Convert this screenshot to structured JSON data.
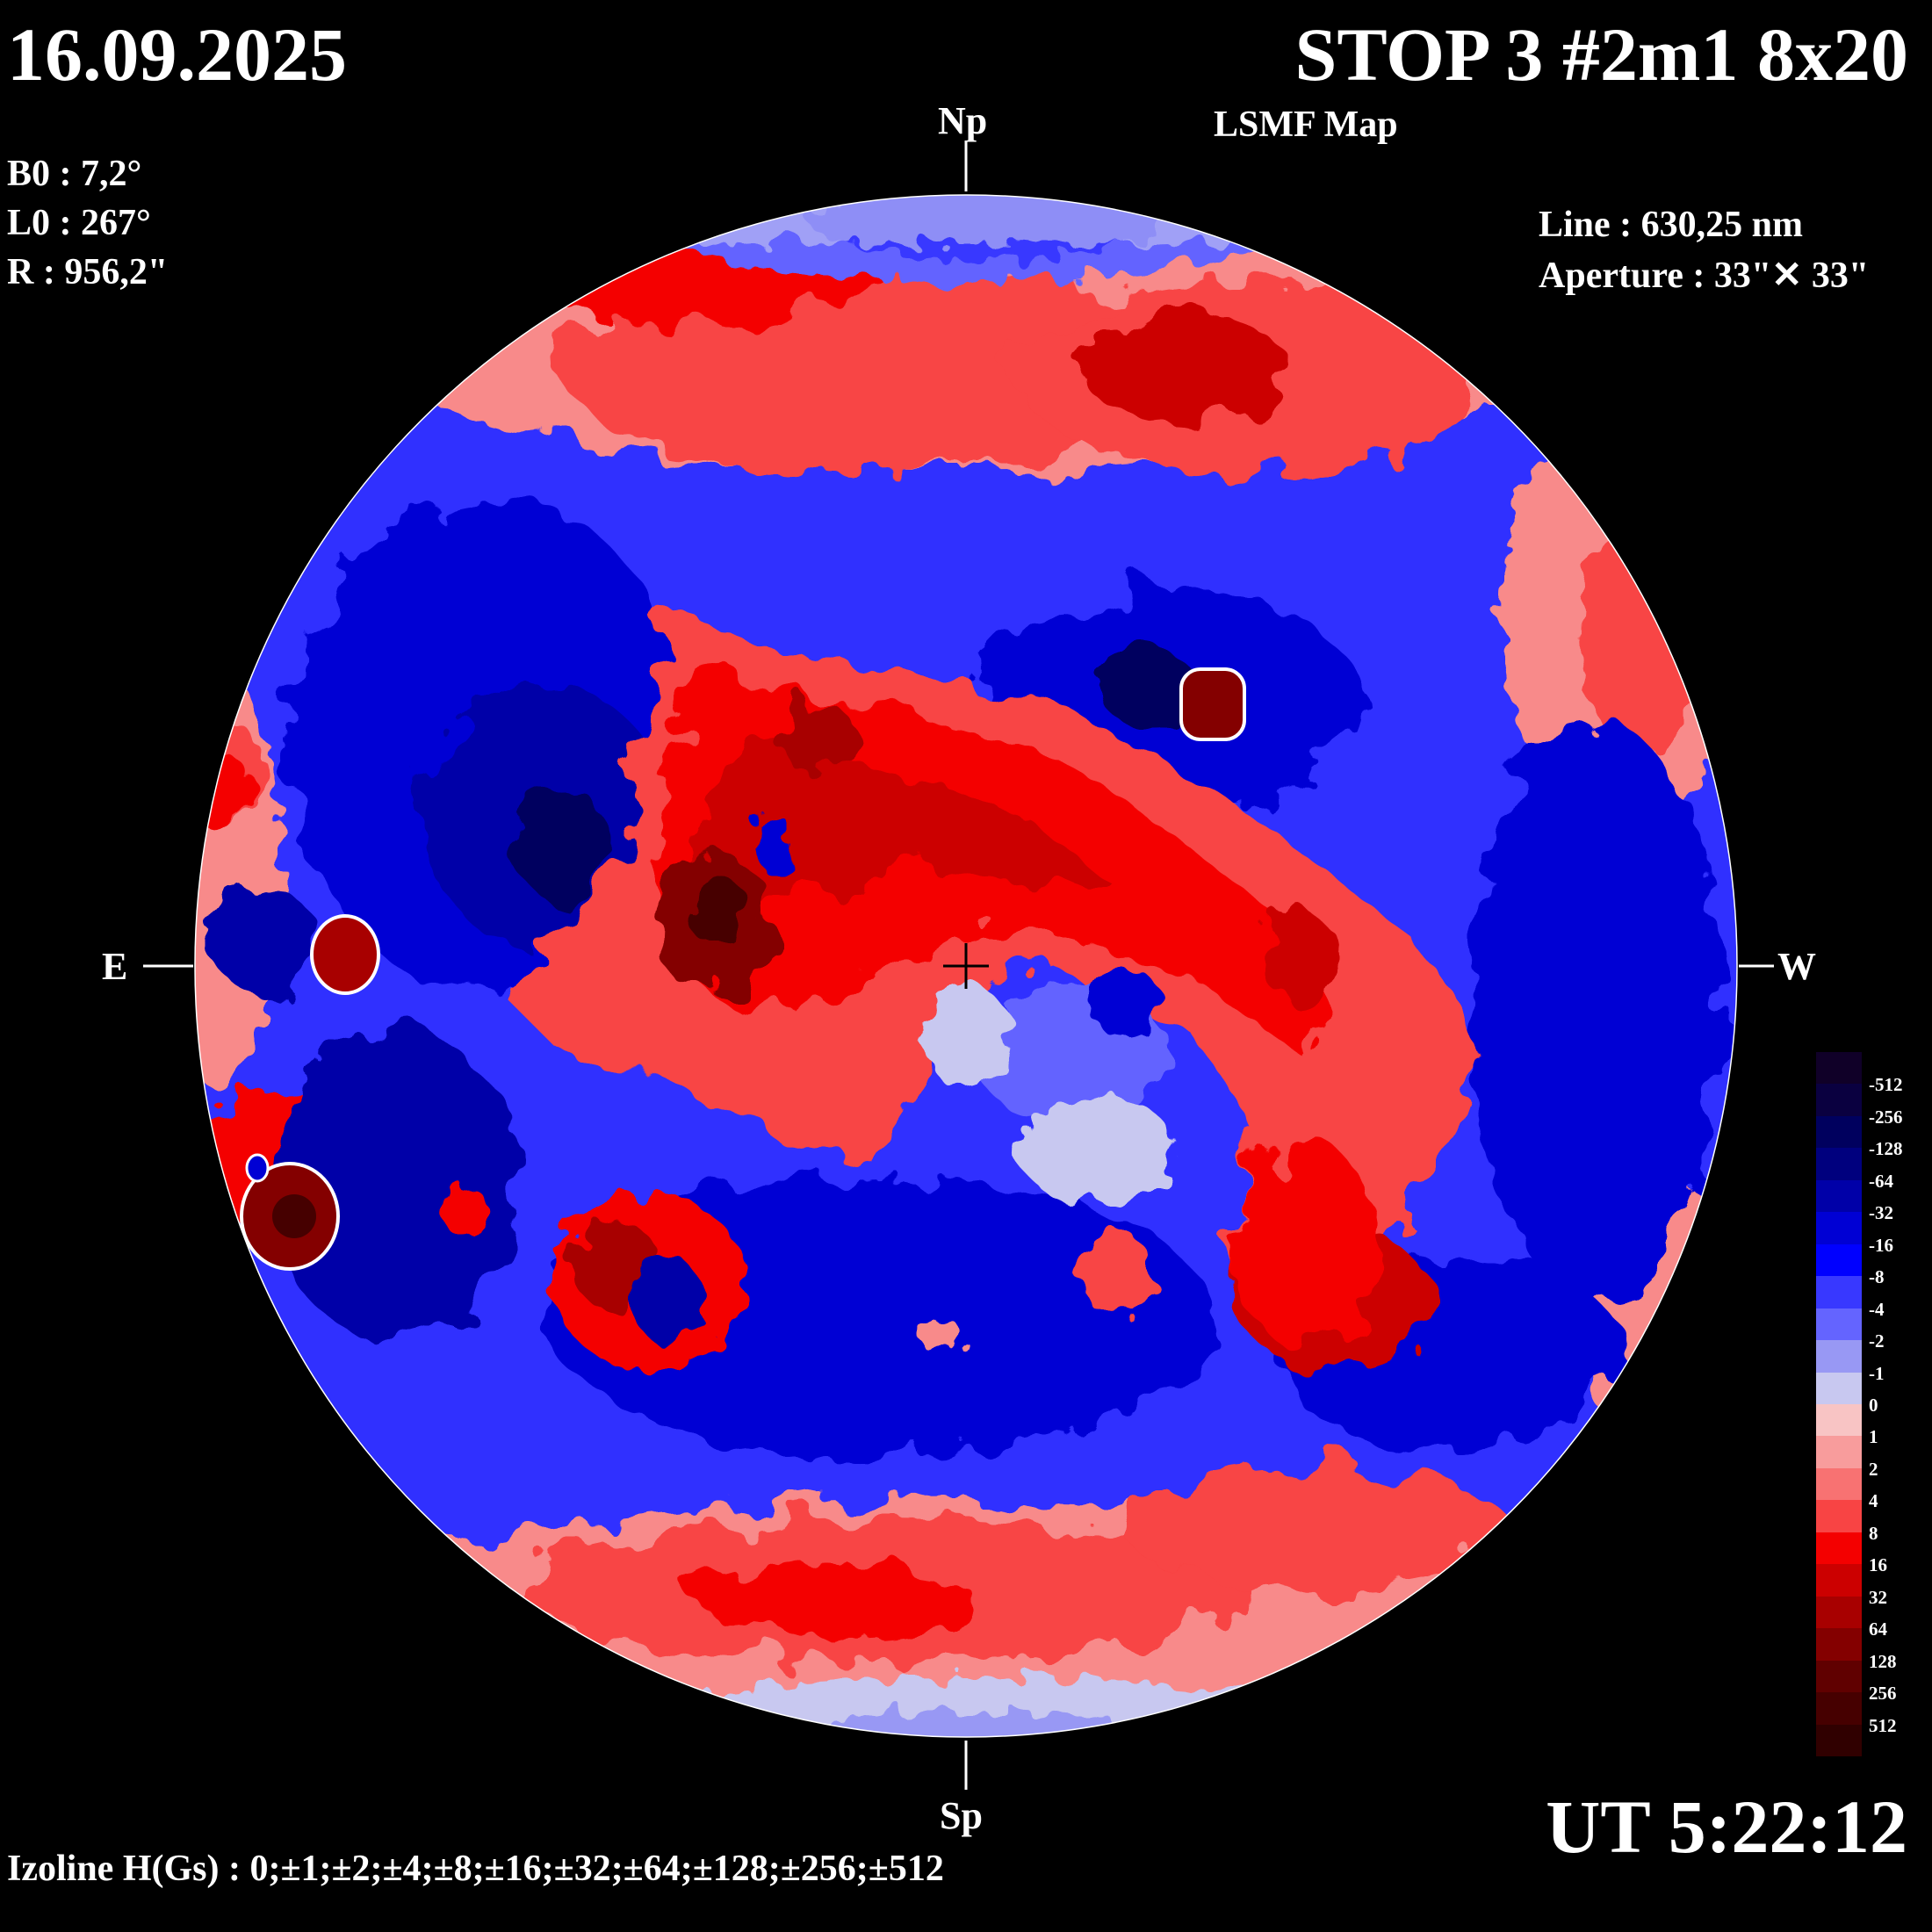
{
  "header": {
    "date": "16.09.2025",
    "title": "STOP 3 #2m1 8x20",
    "subtitle": "LSMF  Map"
  },
  "params": {
    "b0": "B0 : 7,2°",
    "l0": "L0 : 267°",
    "r": "R  : 956,2\""
  },
  "instrument": {
    "line": "Line :  630,25 nm",
    "aperture": "Aperture : 33\"✕ 33\""
  },
  "directions": {
    "north": "Np",
    "south": "Sp",
    "east": "E",
    "west": "W"
  },
  "footer": {
    "ut": "UT 5:22:12",
    "izoline": "Izoline H(Gs) : 0;±1;±2;±4;±8;±16;±32;±64;±128;±256;±512"
  },
  "legend": {
    "labels": [
      "-512",
      "-256",
      "-128",
      "-64",
      "-32",
      "-16",
      "-8",
      "-4",
      "-2",
      "-1",
      "0",
      "1",
      "2",
      "4",
      "8",
      "16",
      "32",
      "64",
      "128",
      "256",
      "512"
    ],
    "colors": [
      "#100028",
      "#0a0040",
      "#00005e",
      "#00007e",
      "#0000a8",
      "#0000d4",
      "#0000ff",
      "#3838ff",
      "#6464ff",
      "#9898f4",
      "#c8c8f0",
      "#f8c4c4",
      "#f89c9c",
      "#f87272",
      "#f84444",
      "#f40000",
      "#cc0000",
      "#a80000",
      "#840000",
      "#600000",
      "#460000",
      "#300000"
    ]
  },
  "map_palette": {
    "strong_negative": "#00007e",
    "negative": "#0000d4",
    "weak_negative": "#6464ff",
    "near_zero_negative": "#c8c8f0",
    "near_zero_positive": "#f8c4c4",
    "weak_positive": "#f87272",
    "positive": "#f40000",
    "strong_positive": "#a80000",
    "peak_positive": "#600000",
    "isoline": "#ffffff",
    "background": "#000000"
  }
}
